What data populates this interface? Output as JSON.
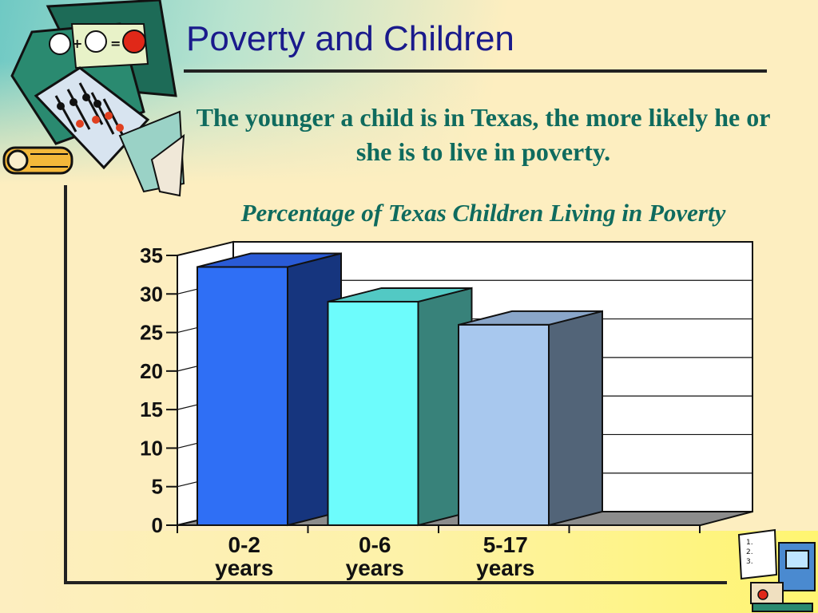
{
  "slide": {
    "title": "Poverty and Children",
    "subtitle": "The younger a child is in Texas, the more likely he or she is to live in poverty.",
    "chart_caption": "Percentage of Texas Children Living in Poverty"
  },
  "chart_data": {
    "type": "bar",
    "style": "3d-column",
    "title": "Percentage of Texas Children Living in Poverty",
    "categories": [
      "0-2 years",
      "0-6 years",
      "5-17 years"
    ],
    "category_lines": [
      [
        "0-2",
        "years"
      ],
      [
        "0-6",
        "years"
      ],
      [
        "5-17",
        "years"
      ]
    ],
    "values": [
      33.5,
      29,
      26
    ],
    "bar_colors": [
      {
        "front": "#2f6ff5",
        "side": "#16357e",
        "top": "#2a5bd6"
      },
      {
        "front": "#6dfcfc",
        "side": "#38827a",
        "top": "#52c9c4"
      },
      {
        "front": "#a8c8ee",
        "side": "#526478",
        "top": "#8aa6c9"
      }
    ],
    "ylim": [
      0,
      35
    ],
    "yticks": [
      "0",
      "5",
      "10",
      "15",
      "20",
      "25",
      "30",
      "35"
    ],
    "ytick_values": [
      0,
      5,
      10,
      15,
      20,
      25,
      30,
      35
    ],
    "grid": true,
    "legend": "none",
    "xlabel": "",
    "ylabel": ""
  },
  "colors": {
    "title": "#1a1a8c",
    "subtitle": "#0f6b5e",
    "background": "#fdeec0"
  },
  "decorations": [
    "abacus-clipart",
    "schoolhouse-computer-clipart"
  ]
}
